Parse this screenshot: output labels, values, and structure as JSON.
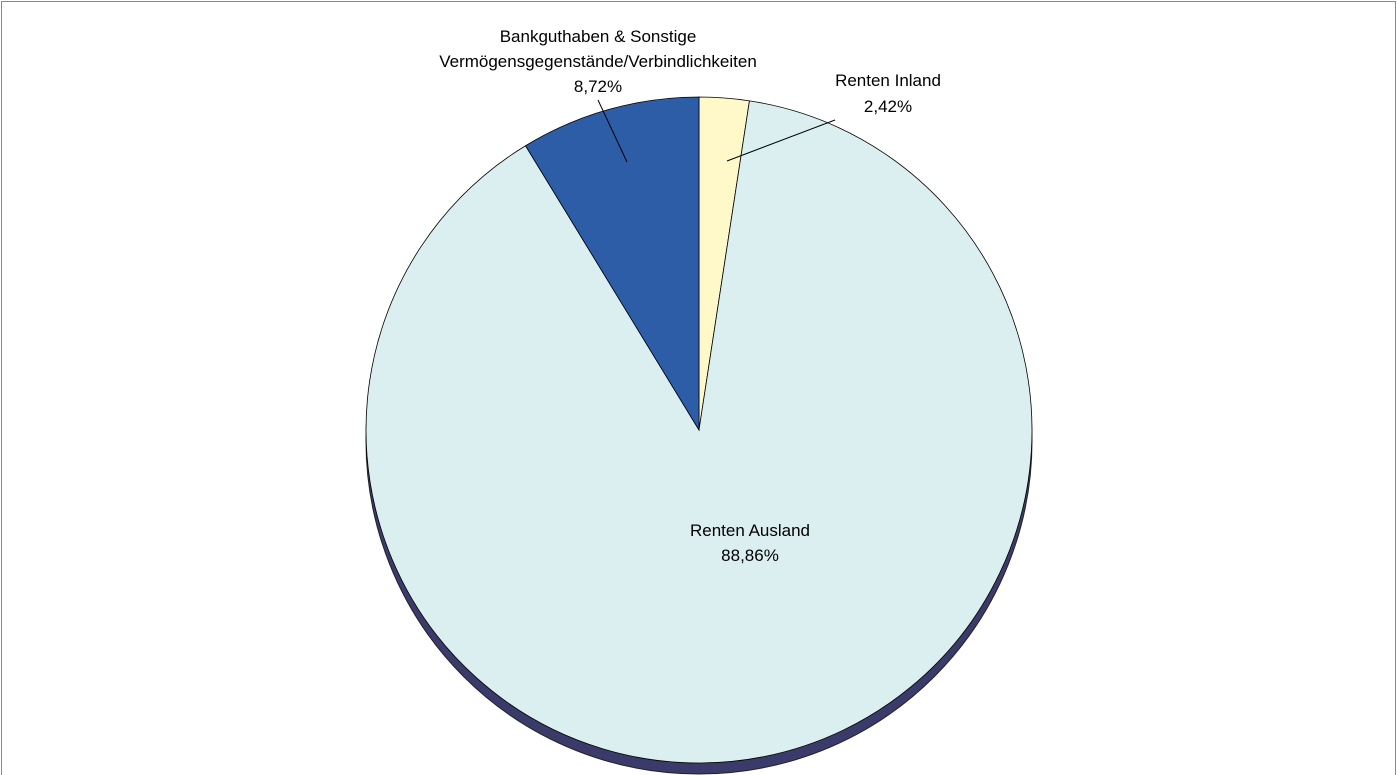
{
  "chart_data": {
    "type": "pie",
    "categories": [
      "Renten Inland",
      "Renten Ausland",
      "Bankguthaben & Sonstige\nVermögensgegenstände/Verbindlichkeiten"
    ],
    "values": [
      2.42,
      88.86,
      8.72
    ],
    "value_labels": [
      "2,42%",
      "88,86%",
      "8,72%"
    ],
    "colors": [
      "#fff9c9",
      "#dbeff0",
      "#2e5da8"
    ]
  }
}
